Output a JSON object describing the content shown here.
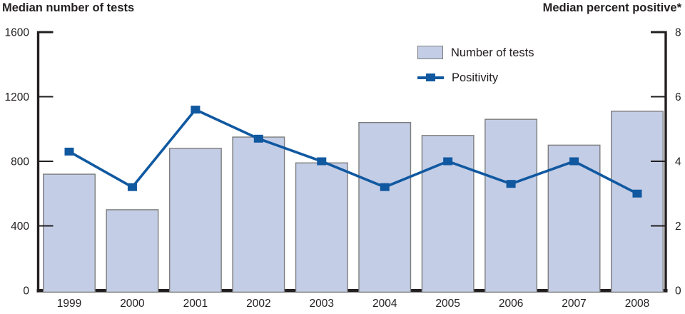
{
  "chart_data": {
    "type": "bar",
    "combo": "bar+line dual-axis",
    "categories": [
      "1999",
      "2000",
      "2001",
      "2002",
      "2003",
      "2004",
      "2005",
      "2006",
      "2007",
      "2008"
    ],
    "series": [
      {
        "name": "Number of tests",
        "type": "bar",
        "axis": "left",
        "values": [
          720,
          500,
          880,
          950,
          790,
          1040,
          960,
          1060,
          900,
          1110
        ]
      },
      {
        "name": "Positivity",
        "type": "line",
        "axis": "right",
        "values": [
          4.3,
          3.2,
          5.6,
          4.7,
          4.0,
          3.2,
          4.0,
          3.3,
          4.0,
          3.0
        ]
      }
    ],
    "left_axis": {
      "label": "Median number of tests",
      "ticks": [
        0,
        400,
        800,
        1200,
        1600
      ],
      "range": [
        0,
        1600
      ]
    },
    "right_axis": {
      "label": "Median percent positive*",
      "ticks": [
        0,
        2,
        4,
        6,
        8
      ],
      "range": [
        0,
        8
      ]
    },
    "legend": {
      "position": "top-center",
      "entries": [
        "Number of tests",
        "Positivity"
      ]
    },
    "grid": false,
    "colors": {
      "bar_fill": "#c3cde6",
      "bar_border": "#7d7d7d",
      "line": "#1058a0",
      "axis": "#231f20",
      "text": "#231f20"
    }
  }
}
